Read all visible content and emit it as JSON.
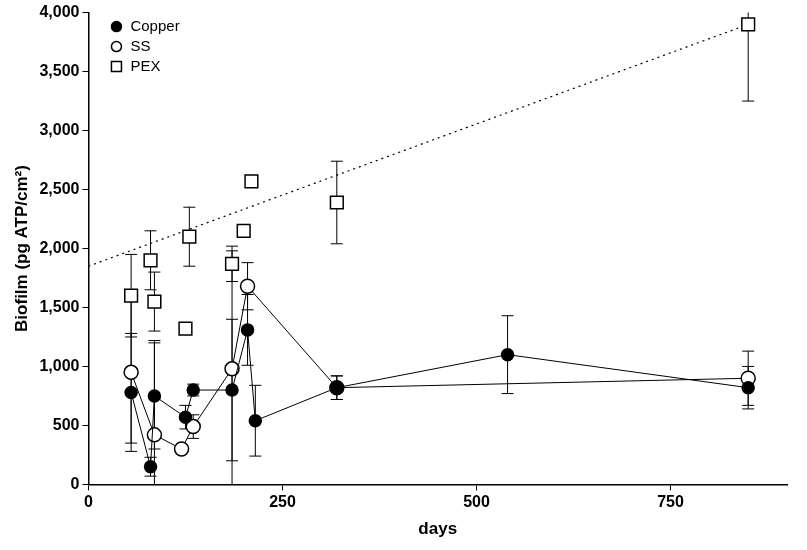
{
  "chart_data": {
    "type": "scatter",
    "x_label": "days",
    "y_label": "Biofilm (pg ATP/cm²)",
    "xlim": [
      0,
      900
    ],
    "xticks": [
      0,
      250,
      500,
      750
    ],
    "ylim": [
      0,
      4000
    ],
    "yticks": [
      0,
      500,
      1000,
      1500,
      2000,
      2500,
      3000,
      3500,
      4000
    ],
    "grid": false,
    "legend": "top-left",
    "series": [
      {
        "name": "Copper",
        "type": "line",
        "marker": "filled_circle",
        "line_style": "solid",
        "color": "#000000",
        "x": [
          55,
          80,
          85,
          125,
          135,
          185,
          205,
          215,
          320,
          540,
          850
        ],
        "values": [
          780,
          150,
          750,
          570,
          800,
          800,
          1310,
          540,
          820,
          1100,
          820
        ],
        "errors": [
          500,
          80,
          450,
          100,
          50,
          600,
          300,
          300,
          100,
          330,
          180
        ]
      },
      {
        "name": "SS",
        "type": "line",
        "marker": "open_circle",
        "line_style": "solid",
        "color": "#000000",
        "x": [
          55,
          85,
          120,
          135,
          185,
          205,
          320,
          850
        ],
        "values": [
          950,
          420,
          300,
          490,
          980,
          1680,
          820,
          900
        ],
        "errors": [
          600,
          800,
          30,
          100,
          1000,
          200,
          100,
          230
        ]
      },
      {
        "name": "PEX",
        "type": "scatter",
        "marker": "open_square",
        "color": "#000000",
        "x": [
          55,
          80,
          85,
          125,
          130,
          185,
          200,
          210,
          320,
          850
        ],
        "values": [
          1600,
          1900,
          1550,
          1320,
          2100,
          1870,
          2150,
          2570,
          2390,
          3900
        ],
        "errors": [
          350,
          250,
          250,
          50,
          250,
          150,
          50,
          50,
          350,
          650
        ],
        "fit": {
          "x": [
            0,
            850
          ],
          "values": [
            1850,
            3900
          ],
          "line_style": "dotted"
        }
      }
    ]
  }
}
